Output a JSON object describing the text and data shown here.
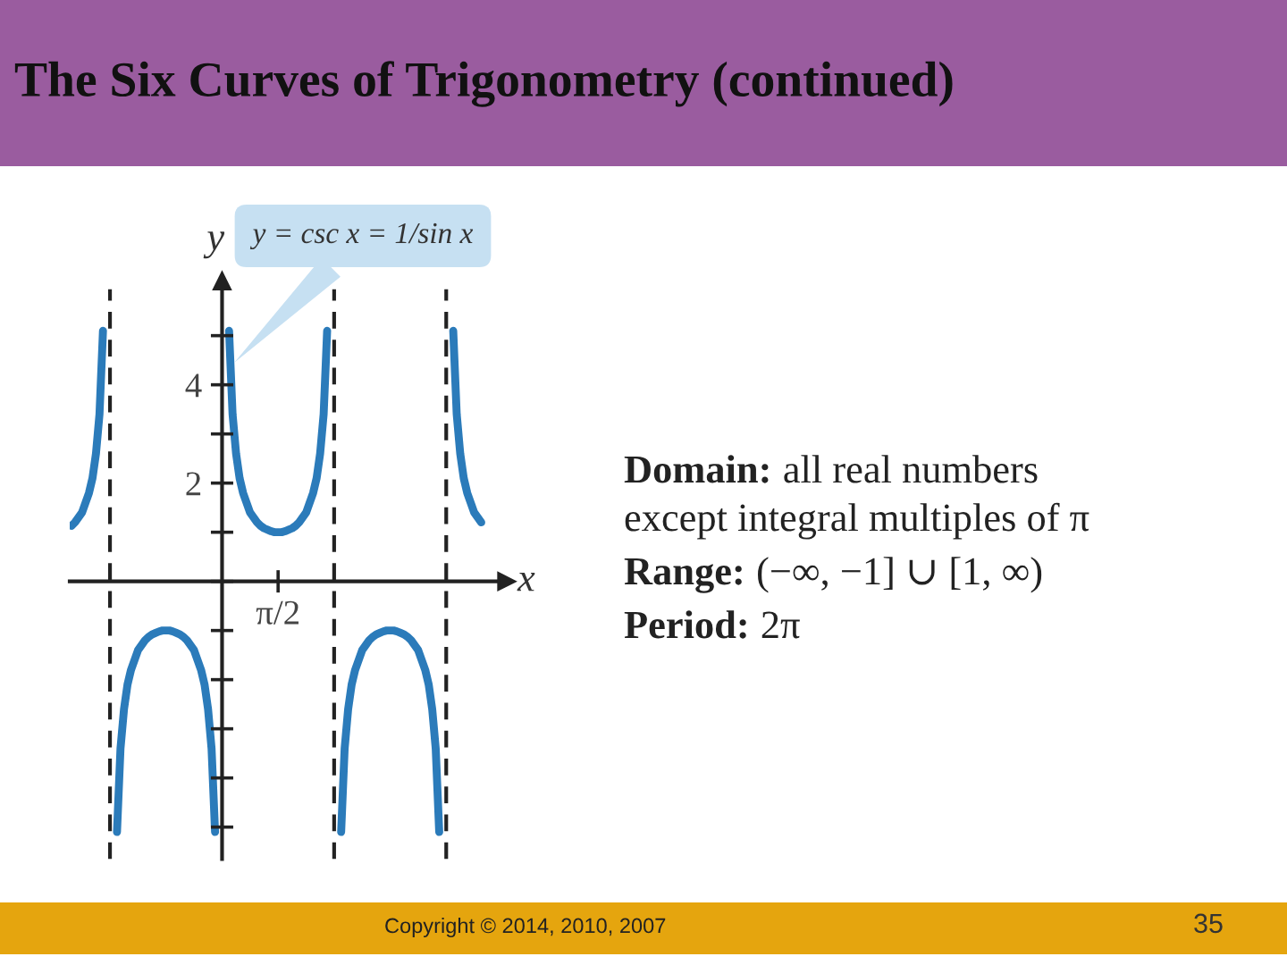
{
  "chart_data": {
    "type": "line",
    "title": "The Six Curves of Trigonometry (continued)",
    "xlabel": "x",
    "ylabel": "y",
    "categories": [
      null,
      null,
      null,
      null,
      null,
      null,
      null,
      null,
      null,
      null,
      null,
      null,
      null,
      null,
      null,
      null,
      null,
      null,
      null,
      null,
      null,
      null,
      null,
      null,
      null,
      null,
      null,
      null,
      null,
      null,
      null,
      null,
      null,
      null,
      null,
      null,
      null,
      null,
      null,
      null,
      null,
      null,
      null,
      null,
      null,
      null,
      null,
      null,
      null,
      null,
      null,
      null,
      null,
      null,
      null,
      null,
      null,
      null,
      null,
      "π/2",
      null,
      null,
      null,
      null,
      null,
      null,
      null,
      null,
      null,
      null,
      null,
      null,
      null,
      null,
      null,
      null,
      null,
      null,
      null,
      null,
      null,
      null,
      null,
      null,
      null,
      null,
      null,
      null,
      null,
      null,
      null,
      null,
      null,
      null,
      null,
      null,
      null,
      null,
      null,
      null,
      null,
      null,
      null,
      null,
      null,
      null,
      null,
      null,
      null,
      null,
      null,
      null,
      null,
      null,
      null,
      null,
      null,
      null,
      null,
      null,
      null,
      null,
      null
    ],
    "series": [
      {
        "color": "#2b7bba",
        "values": [
          1.13,
          1.2,
          1.3,
          1.4,
          1.6,
          1.8,
          2.1,
          2.6,
          3.4,
          5.1,
          null,
          null,
          null,
          null,
          null,
          null,
          null,
          null,
          null,
          null,
          null,
          null,
          null,
          null,
          null,
          null,
          null,
          null,
          null,
          null,
          null,
          null,
          null,
          null,
          null,
          null,
          null,
          null,
          null,
          null,
          null,
          null,
          null,
          null,
          null,
          null,
          null,
          null,
          null,
          null,
          null,
          null,
          null,
          null,
          null,
          null,
          null,
          null,
          null,
          null,
          null,
          null,
          null,
          null,
          null,
          null,
          null,
          null,
          null,
          null,
          null,
          null,
          null,
          null,
          null,
          null,
          null,
          null,
          null,
          null,
          null,
          null,
          null,
          null,
          null,
          null,
          null,
          null,
          null,
          null,
          null,
          null,
          null,
          null,
          null,
          null,
          null,
          null,
          null,
          null,
          null,
          null,
          null,
          null,
          null,
          null,
          null,
          null,
          null,
          null,
          null,
          null,
          null,
          null,
          null,
          null,
          null,
          null,
          null,
          null,
          null,
          null,
          null
        ]
      },
      {
        "color": "#2b7bba",
        "values": [
          null,
          null,
          null,
          null,
          null,
          null,
          null,
          null,
          null,
          null,
          null,
          null,
          null,
          -5.1,
          -3.4,
          -2.6,
          -2.1,
          -1.8,
          -1.6,
          -1.4,
          -1.3,
          -1.2,
          -1.13,
          -1.08,
          -1.05,
          -1.02,
          -1.0,
          -1.0,
          -1.0,
          -1.02,
          -1.05,
          -1.08,
          -1.13,
          -1.2,
          -1.3,
          -1.4,
          -1.6,
          -1.8,
          -2.1,
          -2.6,
          -3.4,
          -5.1,
          null,
          null,
          null,
          null,
          null,
          null,
          null,
          null,
          null,
          null,
          null,
          null,
          null,
          null,
          null,
          null,
          null,
          null,
          null,
          null,
          null,
          null,
          null,
          null,
          null,
          null,
          null,
          null,
          null,
          null,
          null,
          null,
          null,
          null,
          null,
          null,
          null,
          null,
          null,
          null,
          null,
          null,
          null,
          null,
          null,
          null,
          null,
          null,
          null,
          null,
          null,
          null,
          null,
          null,
          null,
          null,
          null,
          null,
          null,
          null,
          null,
          null,
          null,
          null,
          null,
          null,
          null,
          null,
          null,
          null,
          null,
          null,
          null,
          null,
          null,
          null,
          null,
          null,
          null,
          null,
          null
        ]
      },
      {
        "name": "y = csc x = 1/sin x",
        "color": "#2b7bba",
        "values": [
          null,
          null,
          null,
          null,
          null,
          null,
          null,
          null,
          null,
          null,
          null,
          null,
          null,
          null,
          null,
          null,
          null,
          null,
          null,
          null,
          null,
          null,
          null,
          null,
          null,
          null,
          null,
          null,
          null,
          null,
          null,
          null,
          null,
          null,
          null,
          null,
          null,
          null,
          null,
          null,
          null,
          null,
          null,
          null,
          null,
          5.1,
          3.4,
          2.6,
          2.1,
          1.8,
          1.6,
          1.4,
          1.3,
          1.2,
          1.13,
          1.08,
          1.05,
          1.02,
          1.0,
          1.0,
          1.0,
          1.02,
          1.05,
          1.08,
          1.13,
          1.2,
          1.3,
          1.4,
          1.6,
          1.8,
          2.1,
          2.6,
          3.4,
          5.1,
          null,
          null,
          null,
          null,
          null,
          null,
          null,
          null,
          null,
          null,
          null,
          null,
          null,
          null,
          null,
          null,
          null,
          null,
          null,
          null,
          null,
          null,
          null,
          null,
          null,
          null,
          null,
          null,
          null,
          null,
          null,
          null,
          null,
          null,
          null,
          null,
          null,
          null,
          null,
          null,
          null,
          null,
          null,
          null,
          null,
          null,
          null,
          null,
          null
        ]
      },
      {
        "color": "#2b7bba",
        "values": [
          null,
          null,
          null,
          null,
          null,
          null,
          null,
          null,
          null,
          null,
          null,
          null,
          null,
          null,
          null,
          null,
          null,
          null,
          null,
          null,
          null,
          null,
          null,
          null,
          null,
          null,
          null,
          null,
          null,
          null,
          null,
          null,
          null,
          null,
          null,
          null,
          null,
          null,
          null,
          null,
          null,
          null,
          null,
          null,
          null,
          null,
          null,
          null,
          null,
          null,
          null,
          null,
          null,
          null,
          null,
          null,
          null,
          null,
          null,
          null,
          null,
          null,
          null,
          null,
          null,
          null,
          null,
          null,
          null,
          null,
          null,
          null,
          null,
          null,
          null,
          null,
          null,
          -5.1,
          -3.4,
          -2.6,
          -2.1,
          -1.8,
          -1.6,
          -1.4,
          -1.3,
          -1.2,
          -1.13,
          -1.08,
          -1.05,
          -1.02,
          -1.0,
          -1.0,
          -1.0,
          -1.02,
          -1.05,
          -1.08,
          -1.13,
          -1.2,
          -1.3,
          -1.4,
          -1.6,
          -1.8,
          -2.1,
          -2.6,
          -3.4,
          -5.1,
          null,
          null,
          null,
          null,
          null,
          null,
          null,
          null,
          null,
          null,
          null,
          null,
          null,
          null,
          null,
          null,
          null
        ]
      },
      {
        "color": "#2b7bba",
        "values": [
          null,
          null,
          null,
          null,
          null,
          null,
          null,
          null,
          null,
          null,
          null,
          null,
          null,
          null,
          null,
          null,
          null,
          null,
          null,
          null,
          null,
          null,
          null,
          null,
          null,
          null,
          null,
          null,
          null,
          null,
          null,
          null,
          null,
          null,
          null,
          null,
          null,
          null,
          null,
          null,
          null,
          null,
          null,
          null,
          null,
          null,
          null,
          null,
          null,
          null,
          null,
          null,
          null,
          null,
          null,
          null,
          null,
          null,
          null,
          null,
          null,
          null,
          null,
          null,
          null,
          null,
          null,
          null,
          null,
          null,
          null,
          null,
          null,
          null,
          null,
          null,
          null,
          null,
          null,
          null,
          null,
          null,
          null,
          null,
          null,
          null,
          null,
          null,
          null,
          null,
          null,
          null,
          null,
          null,
          null,
          null,
          null,
          null,
          null,
          null,
          null,
          null,
          null,
          null,
          null,
          null,
          null,
          null,
          null,
          5.1,
          3.4,
          2.6,
          2.1,
          1.8,
          1.6,
          1.4,
          1.3,
          1.2,
          null,
          null,
          null,
          null,
          null
        ]
      }
    ],
    "ylim": [
      -5.65,
      5.95
    ],
    "yticks": [
      {
        "value": 2,
        "label": "2"
      },
      {
        "value": 4,
        "label": "4"
      }
    ],
    "annotations": [
      "Domain: all real numbers except integral multiples of π",
      "Range: (−∞, −1] ∪ [1, ∞)",
      "Period: 2π",
      "Copyright © 2014, 2010, 2007",
      "35"
    ]
  }
}
